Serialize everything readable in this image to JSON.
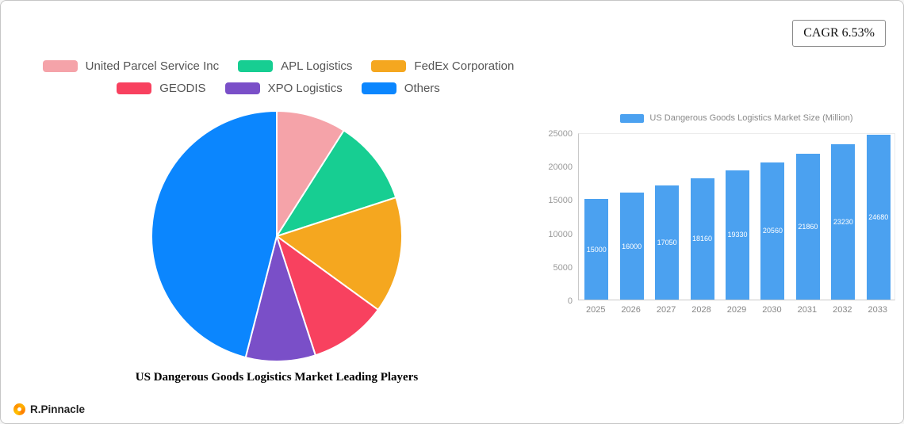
{
  "cagr_badge": "CAGR 6.53%",
  "pie_title": "US Dangerous Goods Logistics Market Leading Players",
  "bar_legend": "US Dangerous Goods Logistics Market Size (Million)",
  "footer_logo": "R.Pinnacle",
  "legend": {
    "rows": [
      [
        0,
        1,
        2
      ],
      [
        3,
        4,
        5
      ]
    ],
    "items": [
      {
        "label": "United Parcel Service Inc",
        "color": "#f5a3a9"
      },
      {
        "label": "APL Logistics",
        "color": "#17ce92"
      },
      {
        "label": "FedEx Corporation",
        "color": "#f5a71f"
      },
      {
        "label": "GEODIS",
        "color": "#f8415f"
      },
      {
        "label": "XPO Logistics",
        "color": "#7a4fc8"
      },
      {
        "label": "Others",
        "color": "#0b86fe"
      }
    ]
  },
  "chart_data": [
    {
      "type": "pie",
      "title": "US Dangerous Goods Logistics Market Leading Players",
      "labels": [
        "United Parcel Service Inc",
        "APL Logistics",
        "FedEx Corporation",
        "GEODIS",
        "XPO Logistics",
        "Others"
      ],
      "values": [
        9,
        11,
        15,
        10,
        9,
        46
      ],
      "colors": [
        "#f5a3a9",
        "#17ce92",
        "#f5a71f",
        "#f8415f",
        "#7a4fc8",
        "#0b86fe"
      ],
      "start_angle_deg": 0,
      "direction": "clockwise",
      "legend_position": "top"
    },
    {
      "type": "bar",
      "title": "US Dangerous Goods Logistics Market Size (Million)",
      "categories": [
        "2025",
        "2026",
        "2027",
        "2028",
        "2029",
        "2030",
        "2031",
        "2032",
        "2033"
      ],
      "values": [
        15000,
        16000,
        17050,
        18160,
        19330,
        20560,
        21860,
        23230,
        24680
      ],
      "ylim": [
        0,
        25000
      ],
      "yticks": [
        0,
        5000,
        10000,
        15000,
        20000,
        25000
      ],
      "bar_color": "#4ba1f0",
      "value_label_color": "#ffffff",
      "grid": false,
      "legend_position": "top"
    }
  ]
}
